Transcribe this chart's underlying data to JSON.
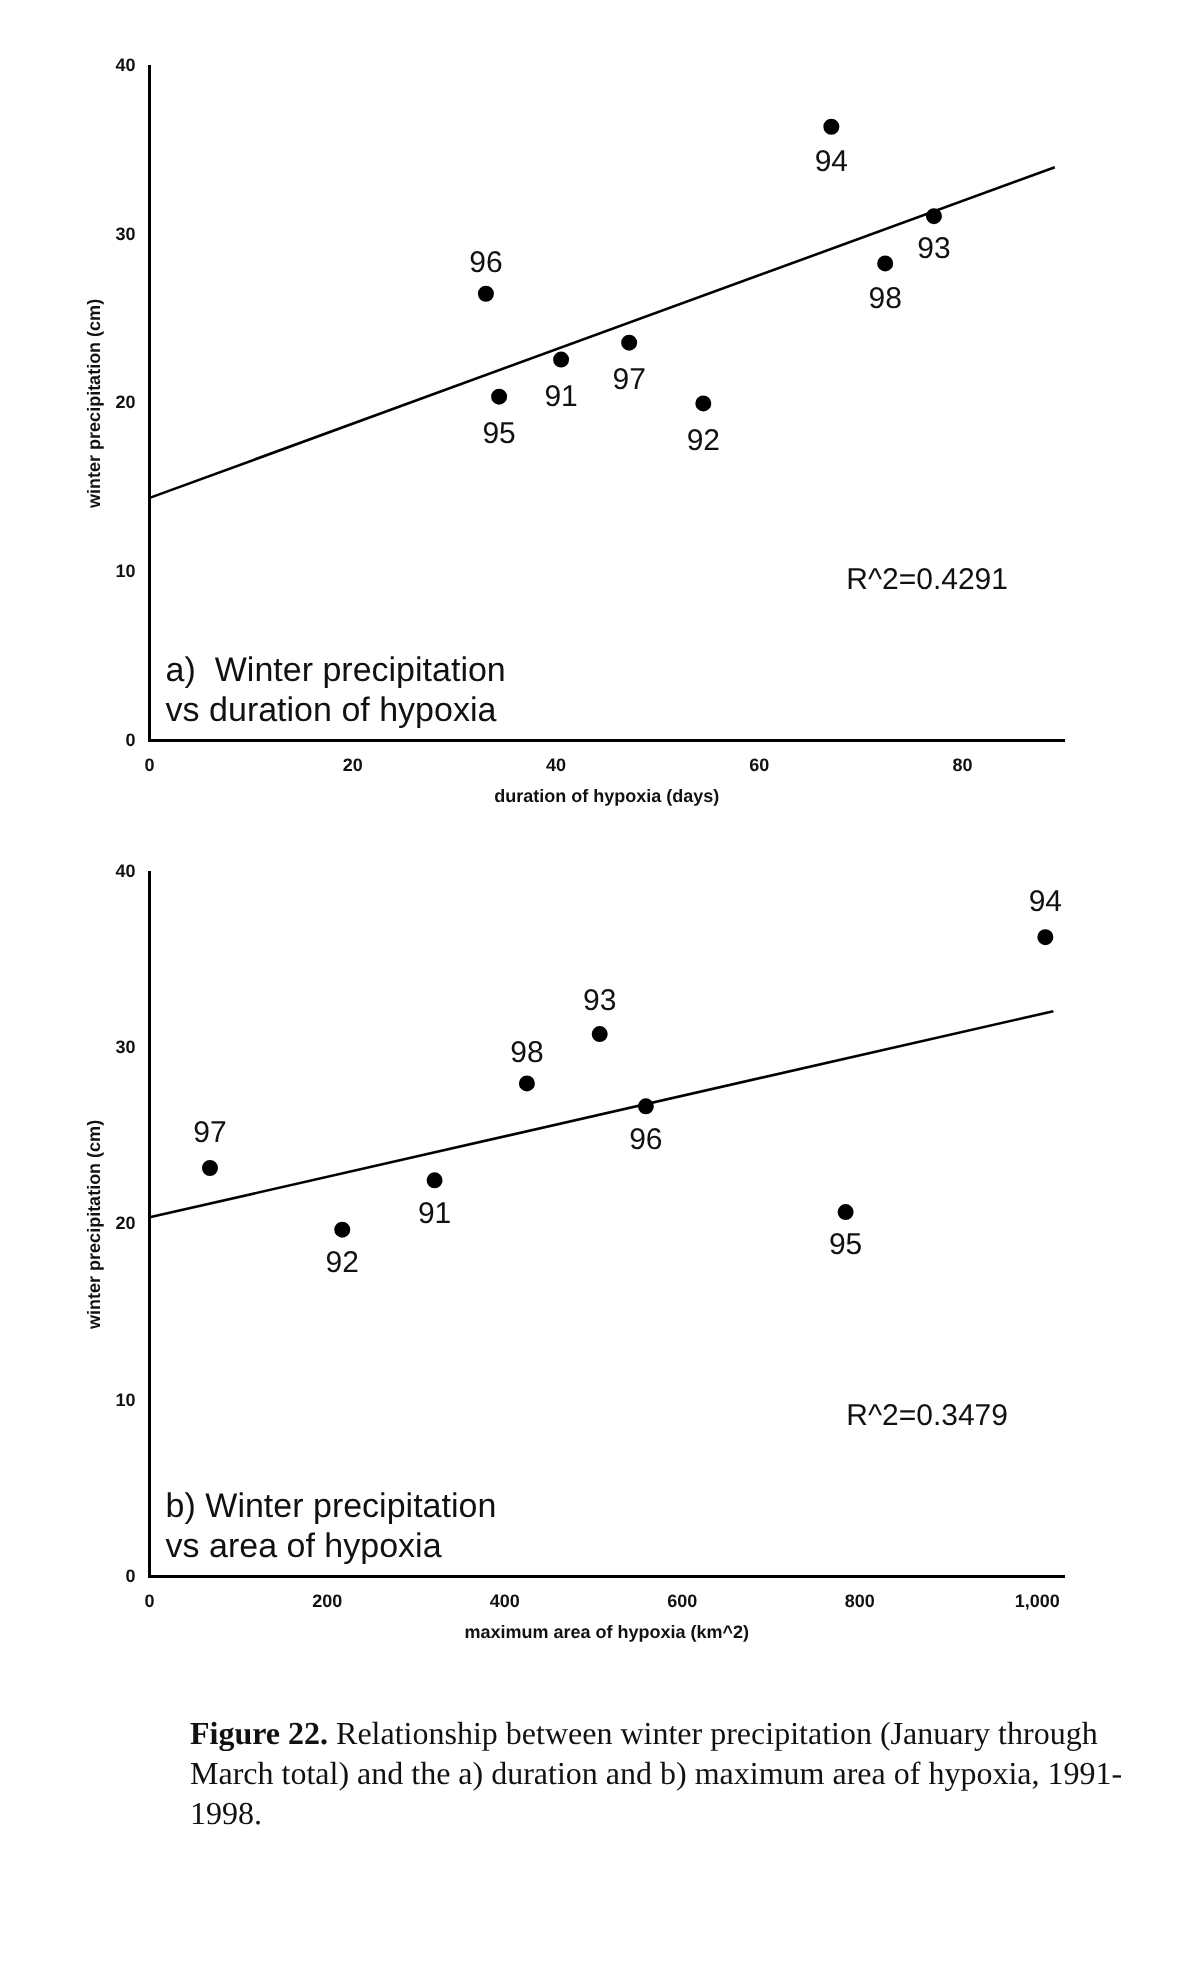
{
  "chart_data": [
    {
      "type": "scatter",
      "title": "a)  Winter precipitation vs duration of hypoxia",
      "xlabel": "duration of hypoxia (days)",
      "ylabel": "winter precipitation (cm)",
      "x": [
        33.1,
        34.4,
        40.5,
        47.2,
        54.5,
        67.1,
        72.4,
        77.2
      ],
      "series": [
        {
          "color": "#000000",
          "marker": "circle",
          "values": [
            26.5,
            20.4,
            22.6,
            23.6,
            20.0,
            36.4,
            28.3,
            31.1
          ]
        },
        {
          "type": "line",
          "color": "#000000",
          "marker": "none",
          "x": [
            0,
            89.1
          ],
          "values": [
            14.4,
            34.0
          ]
        }
      ],
      "xlim": [
        0,
        90
      ],
      "xticks": [
        0,
        20,
        40,
        60,
        80
      ],
      "ylim": [
        0,
        40
      ],
      "yticks": [
        0,
        10,
        20,
        30,
        40
      ],
      "grid": false,
      "legend": false,
      "annotations": [
        "R^2=0.4291",
        {
          "text": "96",
          "x": 33.1,
          "y": 26.5
        },
        {
          "text": "95",
          "x": 34.4,
          "y": 20.4
        },
        {
          "text": "91",
          "x": 40.5,
          "y": 22.6
        },
        {
          "text": "97",
          "x": 47.2,
          "y": 23.6
        },
        {
          "text": "92",
          "x": 54.5,
          "y": 20.0
        },
        {
          "text": "94",
          "x": 67.1,
          "y": 36.4
        },
        {
          "text": "98",
          "x": 72.4,
          "y": 28.3
        },
        {
          "text": "93",
          "x": 77.2,
          "y": 31.1
        }
      ]
    },
    {
      "type": "scatter",
      "title": "b) Winter precipitation vs area of hypoxia",
      "xlabel": "maximum area of hypoxia (km^2)",
      "ylabel": "winter precipitation (cm)",
      "x": [
        68,
        217,
        321,
        425,
        507,
        559,
        784,
        1009
      ],
      "series": [
        {
          "color": "#000000",
          "marker": "circle",
          "values": [
            23.2,
            19.7,
            22.5,
            28.0,
            30.8,
            26.7,
            20.7,
            36.3
          ]
        },
        {
          "type": "line",
          "color": "#000000",
          "marker": "none",
          "x": [
            0,
            1018
          ],
          "values": [
            20.4,
            32.1
          ]
        }
      ],
      "xlim": [
        0,
        1030
      ],
      "xticks": [
        0,
        200,
        400,
        600,
        800,
        {
          "value": 1000,
          "label": "1,000"
        }
      ],
      "ylim": [
        0,
        40
      ],
      "yticks": [
        0,
        10,
        20,
        30,
        40
      ],
      "grid": false,
      "legend": false,
      "annotations": [
        "R^2=0.3479",
        {
          "text": "97",
          "x": 68,
          "y": 23.2
        },
        {
          "text": "92",
          "x": 217,
          "y": 19.7
        },
        {
          "text": "91",
          "x": 321,
          "y": 22.5
        },
        {
          "text": "98",
          "x": 425,
          "y": 28.0
        },
        {
          "text": "93",
          "x": 507,
          "y": 30.8
        },
        {
          "text": "96",
          "x": 559,
          "y": 26.7
        },
        {
          "text": "95",
          "x": 784,
          "y": 20.7
        },
        {
          "text": "94",
          "x": 1009,
          "y": 36.3
        },
        "Figure 22.  Relationship between winter precipitation (January through March total) and the a) duration and b) maximum area of hypoxia, 1991-1998."
      ]
    }
  ]
}
